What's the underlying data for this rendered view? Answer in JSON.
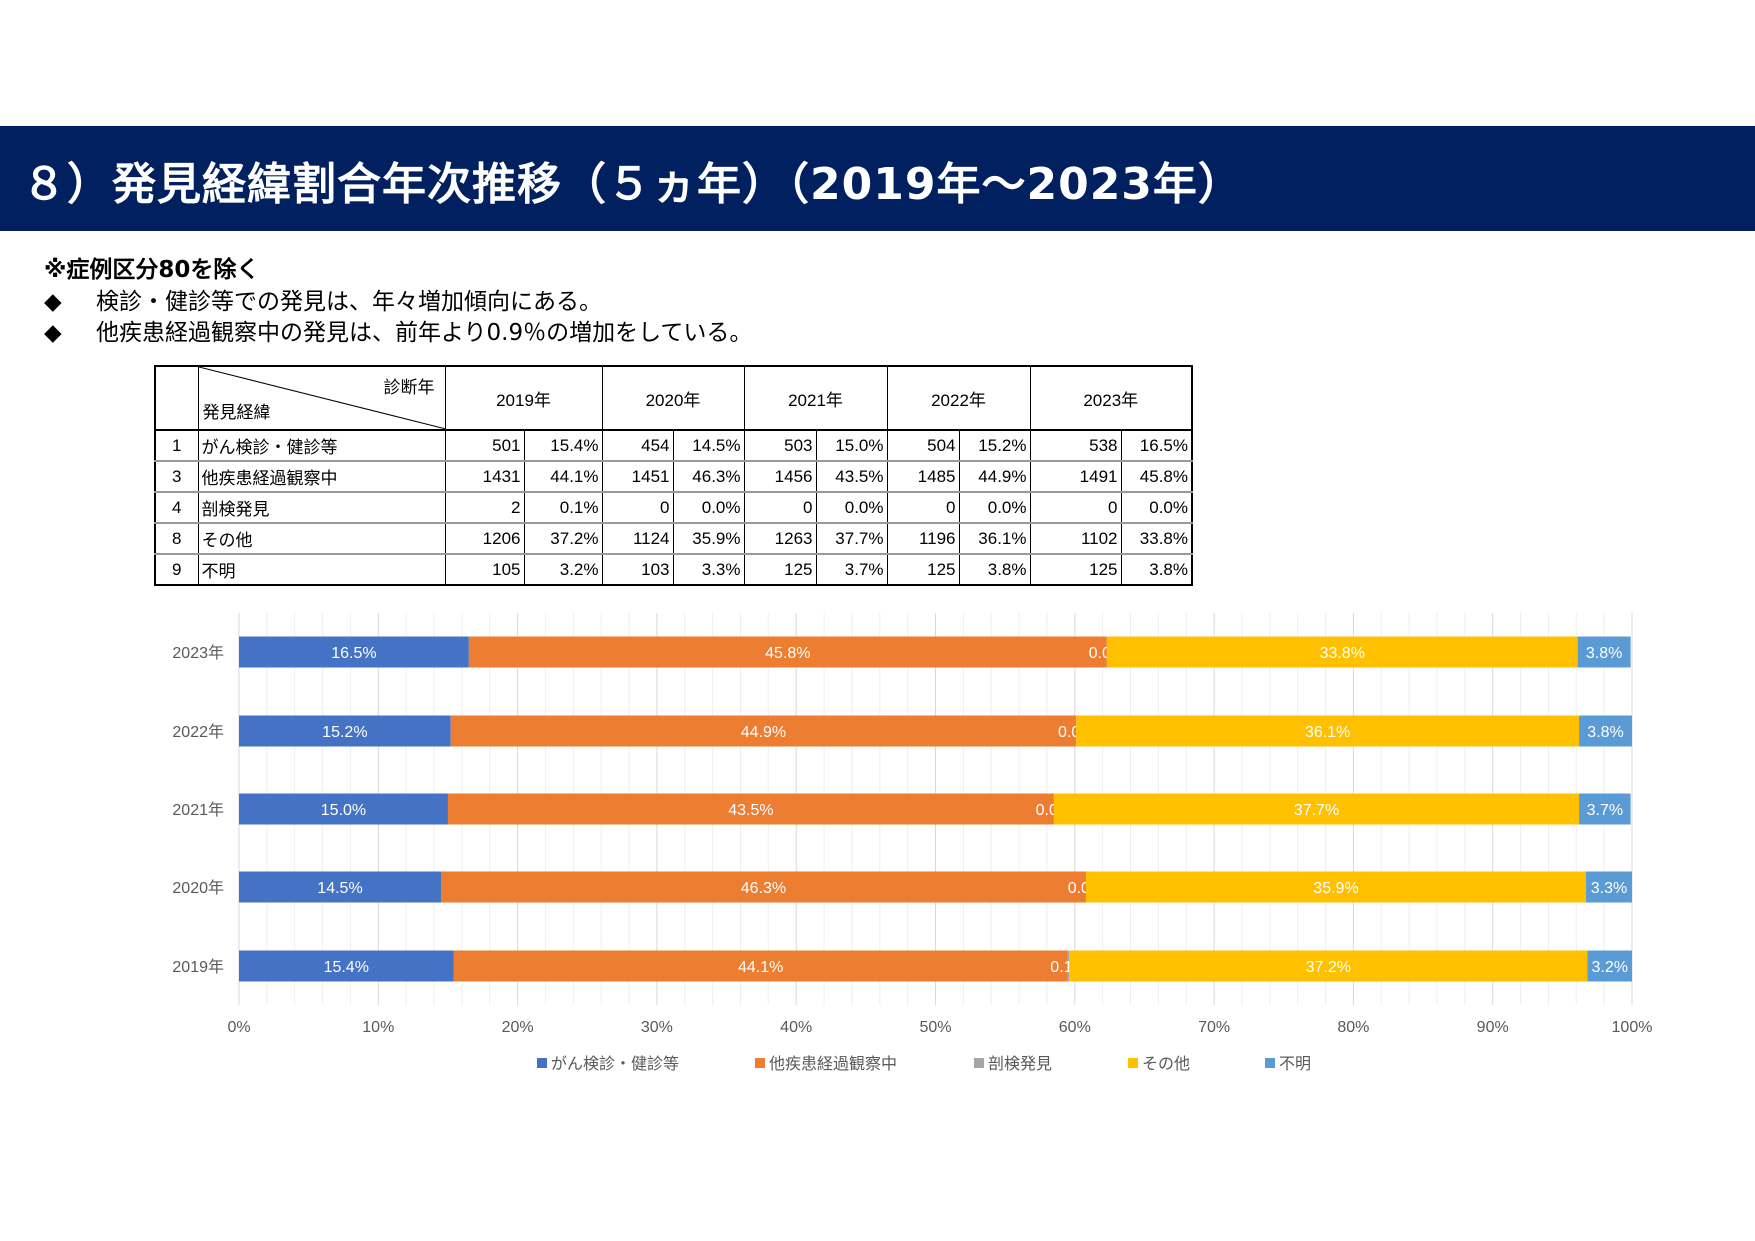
{
  "title": "８）発見経緯割合年次推移（５ヵ年）（2019年～2023年）",
  "notes": {
    "exclusion": "※症例区分80を除く",
    "bullet_icon": "diamond",
    "bullets": [
      "検診・健診等での発見は、年々増加傾向にある。",
      "他疾患経過観察中の発見は、前年より0.9％の増加をしている。"
    ]
  },
  "table": {
    "corner_top": "診断年",
    "corner_bottom": "発見経緯",
    "years": [
      "2019年",
      "2020年",
      "2021年",
      "2022年",
      "2023年"
    ],
    "rows": [
      {
        "code": "1",
        "label": "がん検診・健診等",
        "cells": [
          "501",
          "15.4%",
          "454",
          "14.5%",
          "503",
          "15.0%",
          "504",
          "15.2%",
          "538",
          "16.5%"
        ]
      },
      {
        "code": "3",
        "label": "他疾患経過観察中",
        "cells": [
          "1431",
          "44.1%",
          "1451",
          "46.3%",
          "1456",
          "43.5%",
          "1485",
          "44.9%",
          "1491",
          "45.8%"
        ]
      },
      {
        "code": "4",
        "label": "剖検発見",
        "cells": [
          "2",
          "0.1%",
          "0",
          "0.0%",
          "0",
          "0.0%",
          "0",
          "0.0%",
          "0",
          "0.0%"
        ]
      },
      {
        "code": "8",
        "label": "その他",
        "cells": [
          "1206",
          "37.2%",
          "1124",
          "35.9%",
          "1263",
          "37.7%",
          "1196",
          "36.1%",
          "1102",
          "33.8%"
        ]
      },
      {
        "code": "9",
        "label": "不明",
        "cells": [
          "105",
          "3.2%",
          "103",
          "3.3%",
          "125",
          "3.7%",
          "125",
          "3.8%",
          "125",
          "3.8%"
        ]
      }
    ]
  },
  "chart_data": {
    "type": "bar",
    "orientation": "horizontal",
    "stacked": "percent",
    "categories": [
      "2023年",
      "2022年",
      "2021年",
      "2020年",
      "2019年"
    ],
    "series": [
      {
        "name": "がん検診・健診等",
        "color": "#4472C4",
        "values": [
          16.5,
          15.2,
          15.0,
          14.5,
          15.4
        ],
        "labels": [
          "16.5%",
          "15.2%",
          "15.0%",
          "14.5%",
          "15.4%"
        ]
      },
      {
        "name": "他疾患経過観察中",
        "color": "#ED7D31",
        "values": [
          45.8,
          44.9,
          43.5,
          46.3,
          44.1
        ],
        "labels": [
          "45.8%",
          "44.9%",
          "43.5%",
          "46.3%",
          "44.1%"
        ]
      },
      {
        "name": "剖検発見",
        "color": "#A5A5A5",
        "values": [
          0.0,
          0.0,
          0.0,
          0.0,
          0.1
        ],
        "labels": [
          "0.0%",
          "0.0%",
          "0.0%",
          "0.0%",
          "0.1%"
        ]
      },
      {
        "name": "その他",
        "color": "#FFC000",
        "values": [
          33.8,
          36.1,
          37.7,
          35.9,
          37.2
        ],
        "labels": [
          "33.8%",
          "36.1%",
          "37.7%",
          "35.9%",
          "37.2%"
        ]
      },
      {
        "name": "不明",
        "color": "#5B9BD5",
        "values": [
          3.8,
          3.8,
          3.7,
          3.3,
          3.2
        ],
        "labels": [
          "3.8%",
          "3.8%",
          "3.7%",
          "3.3%",
          "3.2%"
        ]
      }
    ],
    "xlim": [
      0,
      100
    ],
    "xticks": [
      "0%",
      "10%",
      "20%",
      "30%",
      "40%",
      "50%",
      "60%",
      "70%",
      "80%",
      "90%",
      "100%"
    ],
    "grid": true,
    "legend": "bottom"
  }
}
